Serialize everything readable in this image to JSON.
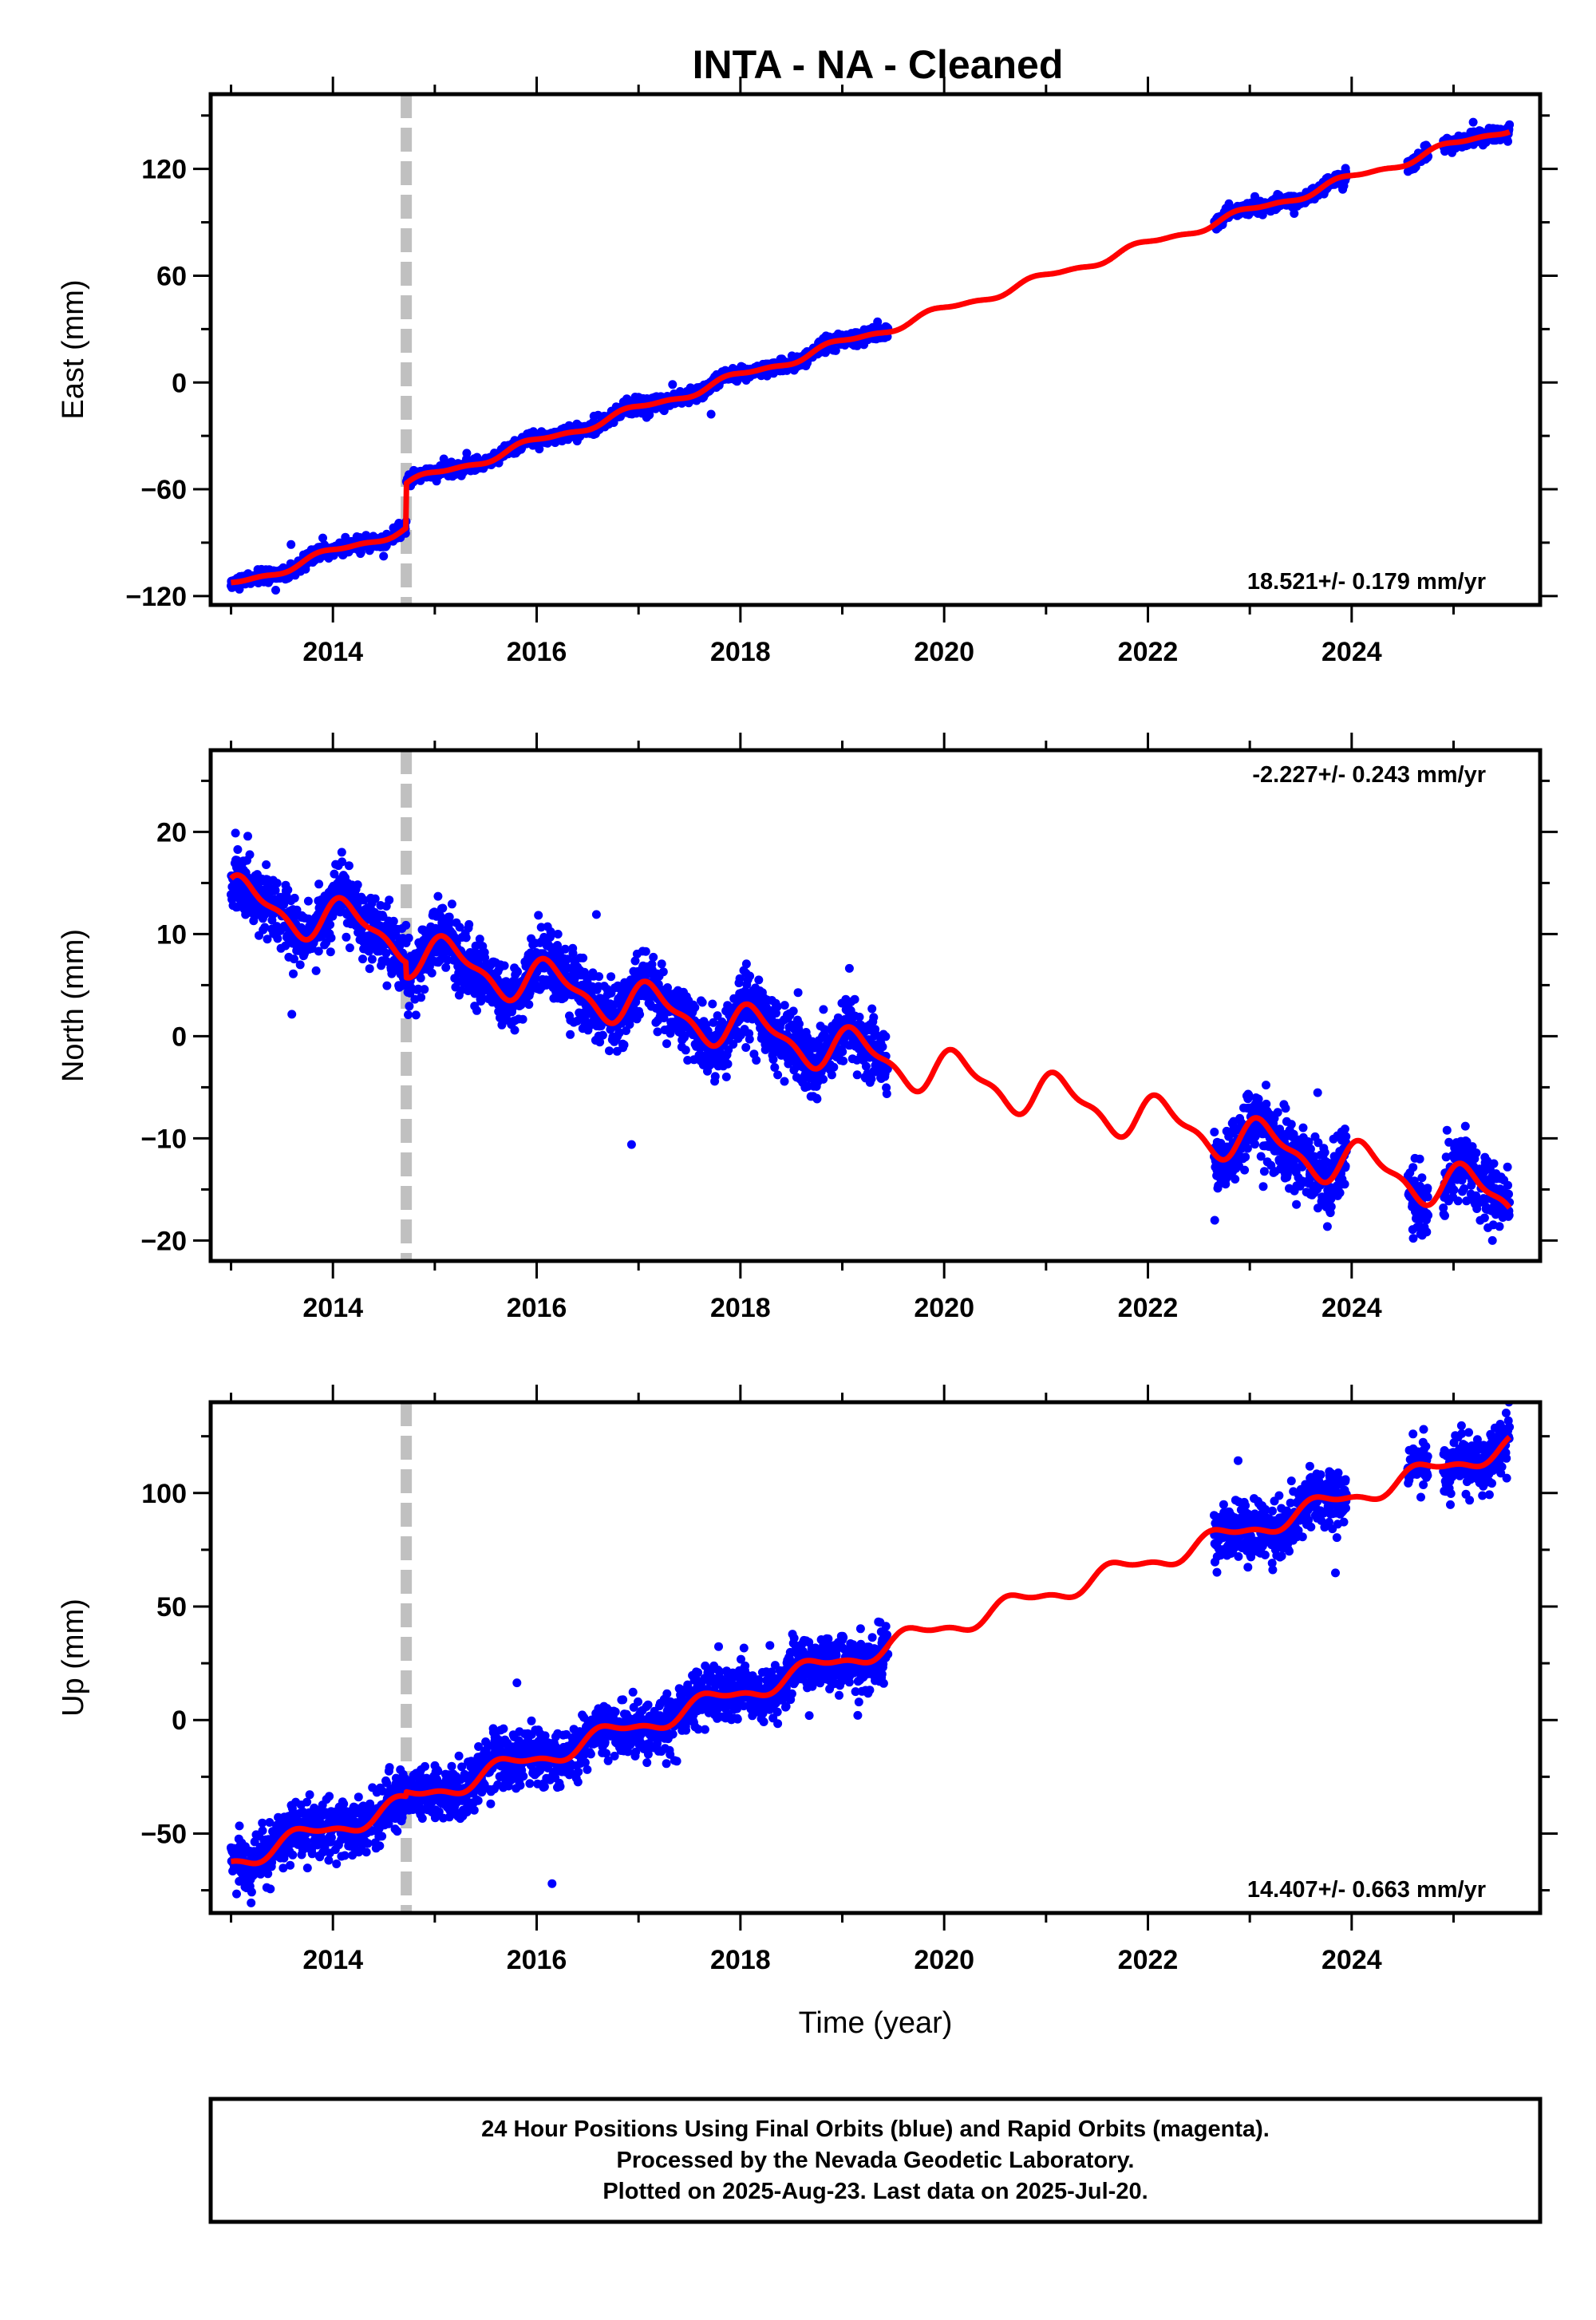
{
  "title": "INTA  - NA - Cleaned",
  "colors": {
    "points": "#0000ff",
    "model": "#ff0000",
    "offset_line": "#c0c0c0",
    "frame": "#000000"
  },
  "chart_data": [
    {
      "type": "scatter",
      "component": "East",
      "ylabel": "East (mm)",
      "xlabel": "",
      "xlim": [
        2012.8,
        2025.85
      ],
      "ylim": [
        -125,
        162
      ],
      "xticks": [
        2014,
        2016,
        2018,
        2020,
        2022,
        2024
      ],
      "yticks": [
        -120,
        -60,
        0,
        60,
        120
      ],
      "rate_label": "18.521+/- 0.179 mm/yr",
      "rate_position": "bottom-right",
      "offset_epoch": 2014.72,
      "data_segments": [
        [
          2013.0,
          2019.45
        ],
        [
          2022.65,
          2023.95
        ],
        [
          2024.55,
          2024.75
        ],
        [
          2024.9,
          2025.55
        ]
      ],
      "series": [
        {
          "name": "",
          "trend": {
            "t0": 2013.0,
            "v0": -114,
            "rate": 18.521
          },
          "steps": [
            {
              "t": 2014.72,
              "dv": 25
            }
          ],
          "seasonal": {
            "amp": 2.2,
            "phase": 0.3
          },
          "noise": 1.8
        }
      ]
    },
    {
      "type": "scatter",
      "component": "North",
      "ylabel": "North (mm)",
      "xlabel": "",
      "xlim": [
        2012.8,
        2025.85
      ],
      "ylim": [
        -22,
        28
      ],
      "xticks": [
        2014,
        2016,
        2018,
        2020,
        2022,
        2024
      ],
      "yticks": [
        -20,
        -10,
        0,
        10,
        20
      ],
      "rate_label": "-2.227+/- 0.243 mm/yr",
      "rate_position": "top-right",
      "offset_epoch": 2014.72,
      "data_segments": [
        [
          2013.0,
          2019.45
        ],
        [
          2022.65,
          2023.95
        ],
        [
          2024.55,
          2024.75
        ],
        [
          2024.9,
          2025.55
        ]
      ],
      "series": [
        {
          "name": "",
          "trend": {
            "t0": 2013.0,
            "v0": 13.5,
            "rate": -2.227
          },
          "steps": [
            {
              "t": 2014.72,
              "dv": -1.5
            }
          ],
          "seasonal": {
            "amp": 2.0,
            "phase": 0.1
          },
          "noise": 1.6
        }
      ]
    },
    {
      "type": "scatter",
      "component": "Up",
      "ylabel": "Up (mm)",
      "xlabel": "Time (year)",
      "xlim": [
        2012.8,
        2025.85
      ],
      "ylim": [
        -85,
        140
      ],
      "xticks": [
        2014,
        2016,
        2018,
        2020,
        2022,
        2024
      ],
      "yticks": [
        -50,
        0,
        50,
        100
      ],
      "rate_label": "14.407+/- 0.663 mm/yr",
      "rate_position": "bottom-right",
      "offset_epoch": 2014.72,
      "data_segments": [
        [
          2013.0,
          2019.45
        ],
        [
          2022.65,
          2023.95
        ],
        [
          2024.55,
          2024.75
        ],
        [
          2024.9,
          2025.55
        ]
      ],
      "series": [
        {
          "name": "",
          "trend": {
            "t0": 2013.0,
            "v0": -62,
            "rate": 14.407
          },
          "steps": [
            {
              "t": 2014.72,
              "dv": 2
            }
          ],
          "seasonal": {
            "amp": 4.0,
            "phase": 0.55
          },
          "noise": 6.0
        }
      ]
    }
  ],
  "footer": {
    "line1": "24 Hour Positions Using Final Orbits (blue) and Rapid Orbits (magenta).",
    "line2": "Processed by the Nevada Geodetic Laboratory.",
    "line3": "Plotted on 2025-Aug-23. Last data on 2025-Jul-20."
  }
}
